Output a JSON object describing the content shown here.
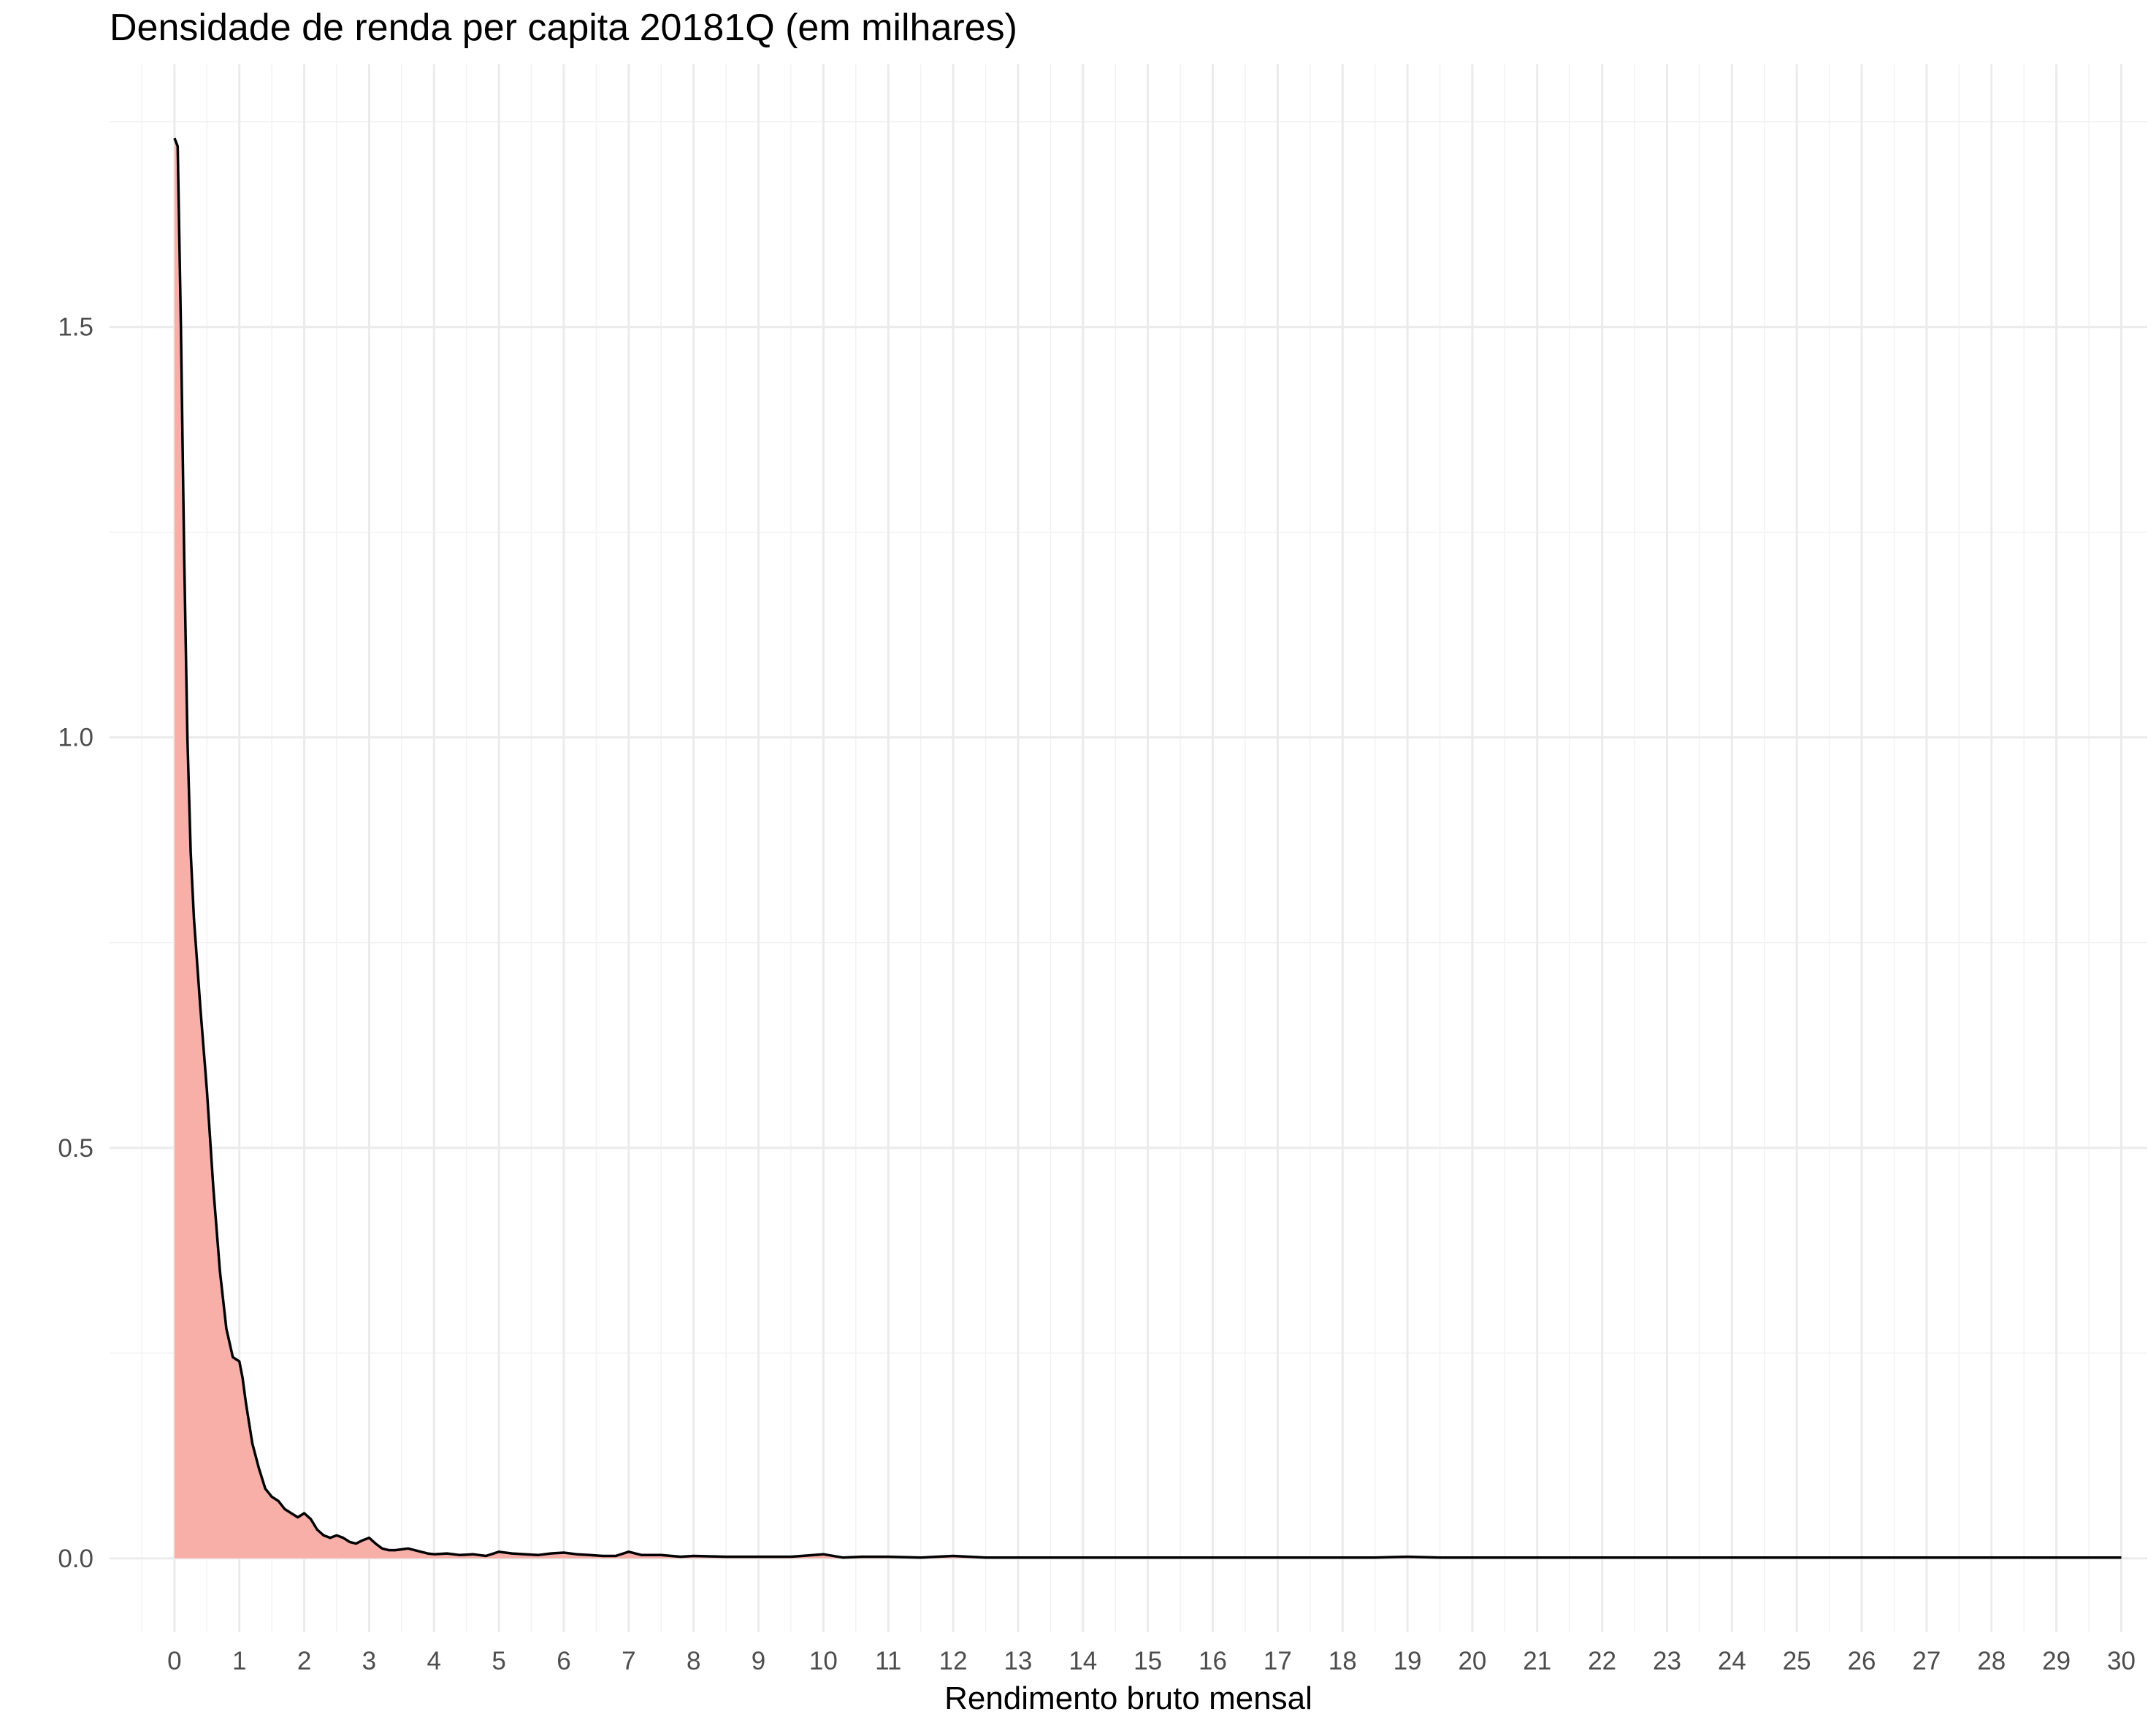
{
  "chart_data": {
    "type": "area",
    "title": "Densidade de renda per capita 20181Q (em milhares)",
    "xlabel": "Rendimento bruto mensal",
    "ylabel": "",
    "xlim": [
      -1,
      30.4
    ],
    "ylim": [
      -0.09,
      1.82
    ],
    "x_ticks": [
      0,
      1,
      2,
      3,
      4,
      5,
      6,
      7,
      8,
      9,
      10,
      11,
      12,
      13,
      14,
      15,
      16,
      17,
      18,
      19,
      20,
      21,
      22,
      23,
      24,
      25,
      26,
      27,
      28,
      29,
      30
    ],
    "x_tick_labels": [
      "0",
      "1",
      "2",
      "3",
      "4",
      "5",
      "6",
      "7",
      "8",
      "9",
      "10",
      "11",
      "12",
      "13",
      "14",
      "15",
      "16",
      "17",
      "18",
      "19",
      "20",
      "21",
      "22",
      "23",
      "24",
      "25",
      "26",
      "27",
      "28",
      "29",
      "30"
    ],
    "y_ticks": [
      0.0,
      0.5,
      1.0,
      1.5
    ],
    "y_tick_labels": [
      "0.0",
      "0.5",
      "1.0",
      "1.5"
    ],
    "grid": true,
    "fill_color": "#F8AFA8",
    "line_color": "#000000",
    "series": [
      {
        "x": [
          0,
          0.05,
          0.1,
          0.15,
          0.2,
          0.25,
          0.3,
          0.4,
          0.5,
          0.6,
          0.7,
          0.8,
          0.9,
          1.0,
          1.05,
          1.1,
          1.2,
          1.3,
          1.4,
          1.5,
          1.6,
          1.7,
          1.8,
          1.9,
          2.0,
          2.1,
          2.2,
          2.3,
          2.4,
          2.5,
          2.6,
          2.7,
          2.8,
          2.9,
          3.0,
          3.1,
          3.2,
          3.3,
          3.4,
          3.5,
          3.6,
          3.7,
          3.8,
          3.9,
          4.0,
          4.2,
          4.4,
          4.6,
          4.8,
          5.0,
          5.2,
          5.4,
          5.6,
          5.8,
          6.0,
          6.2,
          6.4,
          6.6,
          6.8,
          7.0,
          7.2,
          7.5,
          7.8,
          8.0,
          8.5,
          9.0,
          9.5,
          10.0,
          10.3,
          10.6,
          11.0,
          11.5,
          12.0,
          12.5,
          13,
          14,
          15,
          16,
          17,
          18,
          18.5,
          19,
          19.5,
          20,
          21,
          22,
          23,
          24,
          25,
          26,
          27,
          28,
          29,
          30
        ],
        "y": [
          1.73,
          1.72,
          1.5,
          1.22,
          1.0,
          0.86,
          0.78,
          0.67,
          0.57,
          0.45,
          0.35,
          0.28,
          0.245,
          0.24,
          0.22,
          0.19,
          0.14,
          0.11,
          0.085,
          0.075,
          0.07,
          0.06,
          0.055,
          0.05,
          0.055,
          0.048,
          0.035,
          0.028,
          0.025,
          0.028,
          0.025,
          0.02,
          0.018,
          0.022,
          0.025,
          0.018,
          0.012,
          0.01,
          0.01,
          0.011,
          0.012,
          0.01,
          0.008,
          0.006,
          0.005,
          0.006,
          0.004,
          0.005,
          0.003,
          0.008,
          0.006,
          0.005,
          0.004,
          0.006,
          0.007,
          0.005,
          0.004,
          0.003,
          0.003,
          0.008,
          0.004,
          0.004,
          0.002,
          0.003,
          0.002,
          0.002,
          0.002,
          0.005,
          0.001,
          0.002,
          0.002,
          0.001,
          0.003,
          0.001,
          0.001,
          0.001,
          0.001,
          0.001,
          0.001,
          0.001,
          0.001,
          0.002,
          0.001,
          0.001,
          0.001,
          0.001,
          0.001,
          0.001,
          0.001,
          0.001,
          0.001,
          0.001,
          0.001,
          0.001
        ]
      }
    ]
  }
}
